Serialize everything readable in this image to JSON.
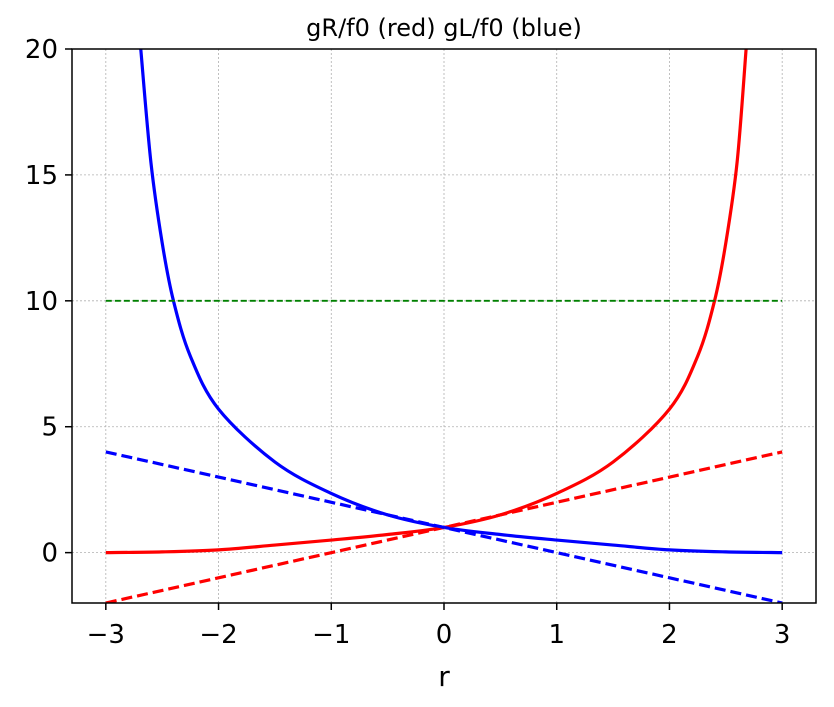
{
  "chart_data": {
    "type": "line",
    "title": "gR/f0 (red) gL/f0 (blue)",
    "xlabel": "r",
    "ylabel": "",
    "xlim": [
      -3.3,
      3.3
    ],
    "ylim": [
      -2,
      20
    ],
    "xticks": [
      -3,
      -2,
      -1,
      0,
      1,
      2,
      3
    ],
    "xtick_labels": [
      "−3",
      "−2",
      "−1",
      "0",
      "1",
      "2",
      "3"
    ],
    "yticks": [
      0,
      5,
      10,
      15,
      20
    ],
    "ytick_labels": [
      "0",
      "5",
      "10",
      "15",
      "20"
    ],
    "grid": true,
    "series": [
      {
        "color": "#ff0000",
        "dash": "solid",
        "x": [
          -3,
          -2.5,
          -2,
          -1.5,
          -1,
          -0.5,
          0,
          0.5,
          1,
          1.5,
          2,
          2.25,
          2.4,
          2.5,
          2.6,
          2.68
        ],
        "y": [
          0.0,
          0.03,
          0.11,
          0.3,
          0.5,
          0.72,
          1.0,
          1.5,
          2.35,
          3.6,
          5.7,
          7.8,
          10.0,
          12.3,
          15.5,
          20.0
        ]
      },
      {
        "color": "#0000ff",
        "dash": "solid",
        "x": [
          -2.69,
          -2.6,
          -2.5,
          -2.4,
          -2.25,
          -2,
          -1.5,
          -1,
          -0.5,
          0,
          0.5,
          1,
          1.5,
          2,
          2.5,
          3
        ],
        "y": [
          20.0,
          15.5,
          12.3,
          10.0,
          7.8,
          5.7,
          3.6,
          2.35,
          1.5,
          1.0,
          0.72,
          0.5,
          0.3,
          0.11,
          0.03,
          0.0
        ]
      },
      {
        "color": "#ff0000",
        "dash": "dashed",
        "x": [
          -3,
          3
        ],
        "y": [
          -2,
          4
        ]
      },
      {
        "color": "#0000ff",
        "dash": "dashed",
        "x": [
          -3,
          3
        ],
        "y": [
          4,
          -2
        ]
      },
      {
        "color": "#008000",
        "dash": "thin-dashed",
        "x": [
          -3,
          3
        ],
        "y": [
          10,
          10
        ]
      }
    ]
  }
}
